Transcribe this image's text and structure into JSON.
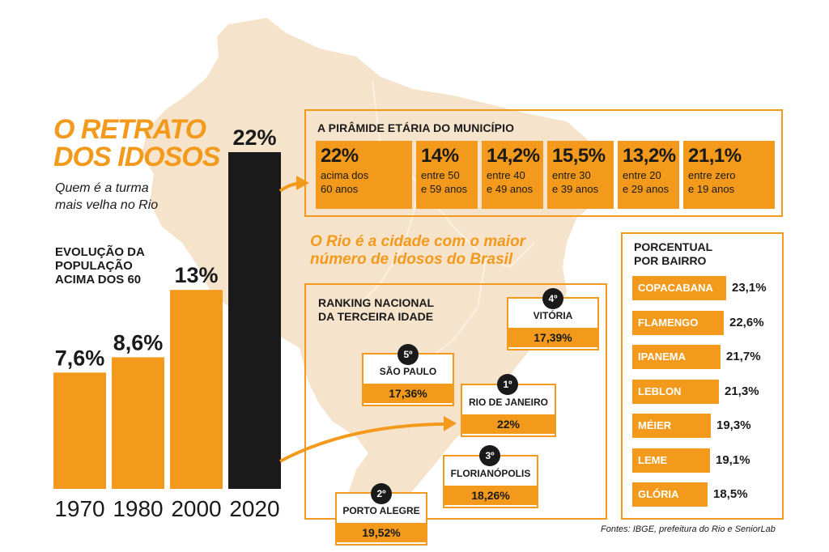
{
  "headline": {
    "title_line1": "O RETRATO",
    "title_line2": "DOS IDOSOS",
    "subtitle_line1": "Quem é a turma",
    "subtitle_line2": "mais velha no Rio"
  },
  "colors": {
    "accent": "#f39a1c",
    "dark": "#1a1a1a",
    "map": "#f6e3cb"
  },
  "chart_data": {
    "type": "bar",
    "title": "EVOLUÇÃO DA POPULAÇÃO ACIMA DOS 60",
    "title_line1": "EVOLUÇÃO DA",
    "title_line2": "POPULAÇÃO",
    "title_line3": "ACIMA DOS 60",
    "categories": [
      "1970",
      "1980",
      "2000",
      "2020"
    ],
    "values": [
      7.6,
      8.6,
      13,
      22
    ],
    "labels": [
      "7,6%",
      "8,6%",
      "13%",
      "22%"
    ],
    "highlight_index": 3,
    "ylim": [
      0,
      22
    ]
  },
  "pyramid": {
    "title": "A PIRÂMIDE ETÁRIA DO MUNICÍPIO",
    "cells": [
      {
        "value": "22%",
        "line1": "acima dos",
        "line2": "60 anos"
      },
      {
        "value": "14%",
        "line1": "entre 50",
        "line2": "e 59 anos"
      },
      {
        "value": "14,2%",
        "line1": "entre 40",
        "line2": "e 49 anos"
      },
      {
        "value": "15,5%",
        "line1": "entre 30",
        "line2": "e 39 anos"
      },
      {
        "value": "13,2%",
        "line1": "entre 20",
        "line2": "e 29 anos"
      },
      {
        "value": "21,1%",
        "line1": "entre zero",
        "line2": "e 19 anos"
      }
    ]
  },
  "highlight": {
    "line1": "O Rio é a cidade com o maior",
    "line2": "número de idosos do Brasil"
  },
  "ranking": {
    "title_line1": "RANKING NACIONAL",
    "title_line2": "DA TERCEIRA IDADE",
    "cities": [
      {
        "rank": "1º",
        "name": "RIO DE JANEIRO",
        "pct": "22%"
      },
      {
        "rank": "2º",
        "name": "PORTO ALEGRE",
        "pct": "19,52%"
      },
      {
        "rank": "3º",
        "name": "FLORIANÓPOLIS",
        "pct": "18,26%"
      },
      {
        "rank": "4º",
        "name": "VITÓRIA",
        "pct": "17,39%"
      },
      {
        "rank": "5º",
        "name": "SÃO PAULO",
        "pct": "17,36%"
      }
    ]
  },
  "bairros": {
    "title_line1": "PORCENTUAL",
    "title_line2": "POR BAIRRO",
    "items": [
      {
        "name": "COPACABANA",
        "value": 23.1,
        "label": "23,1%"
      },
      {
        "name": "FLAMENGO",
        "value": 22.6,
        "label": "22,6%"
      },
      {
        "name": "IPANEMA",
        "value": 21.7,
        "label": "21,7%"
      },
      {
        "name": "LEBLON",
        "value": 21.3,
        "label": "21,3%"
      },
      {
        "name": "MÉIER",
        "value": 19.3,
        "label": "19,3%"
      },
      {
        "name": "LEME",
        "value": 19.1,
        "label": "19,1%"
      },
      {
        "name": "GLÓRIA",
        "value": 18.5,
        "label": "18,5%"
      }
    ]
  },
  "source": "Fontes: IBGE, prefeitura do Rio e SeniorLab"
}
